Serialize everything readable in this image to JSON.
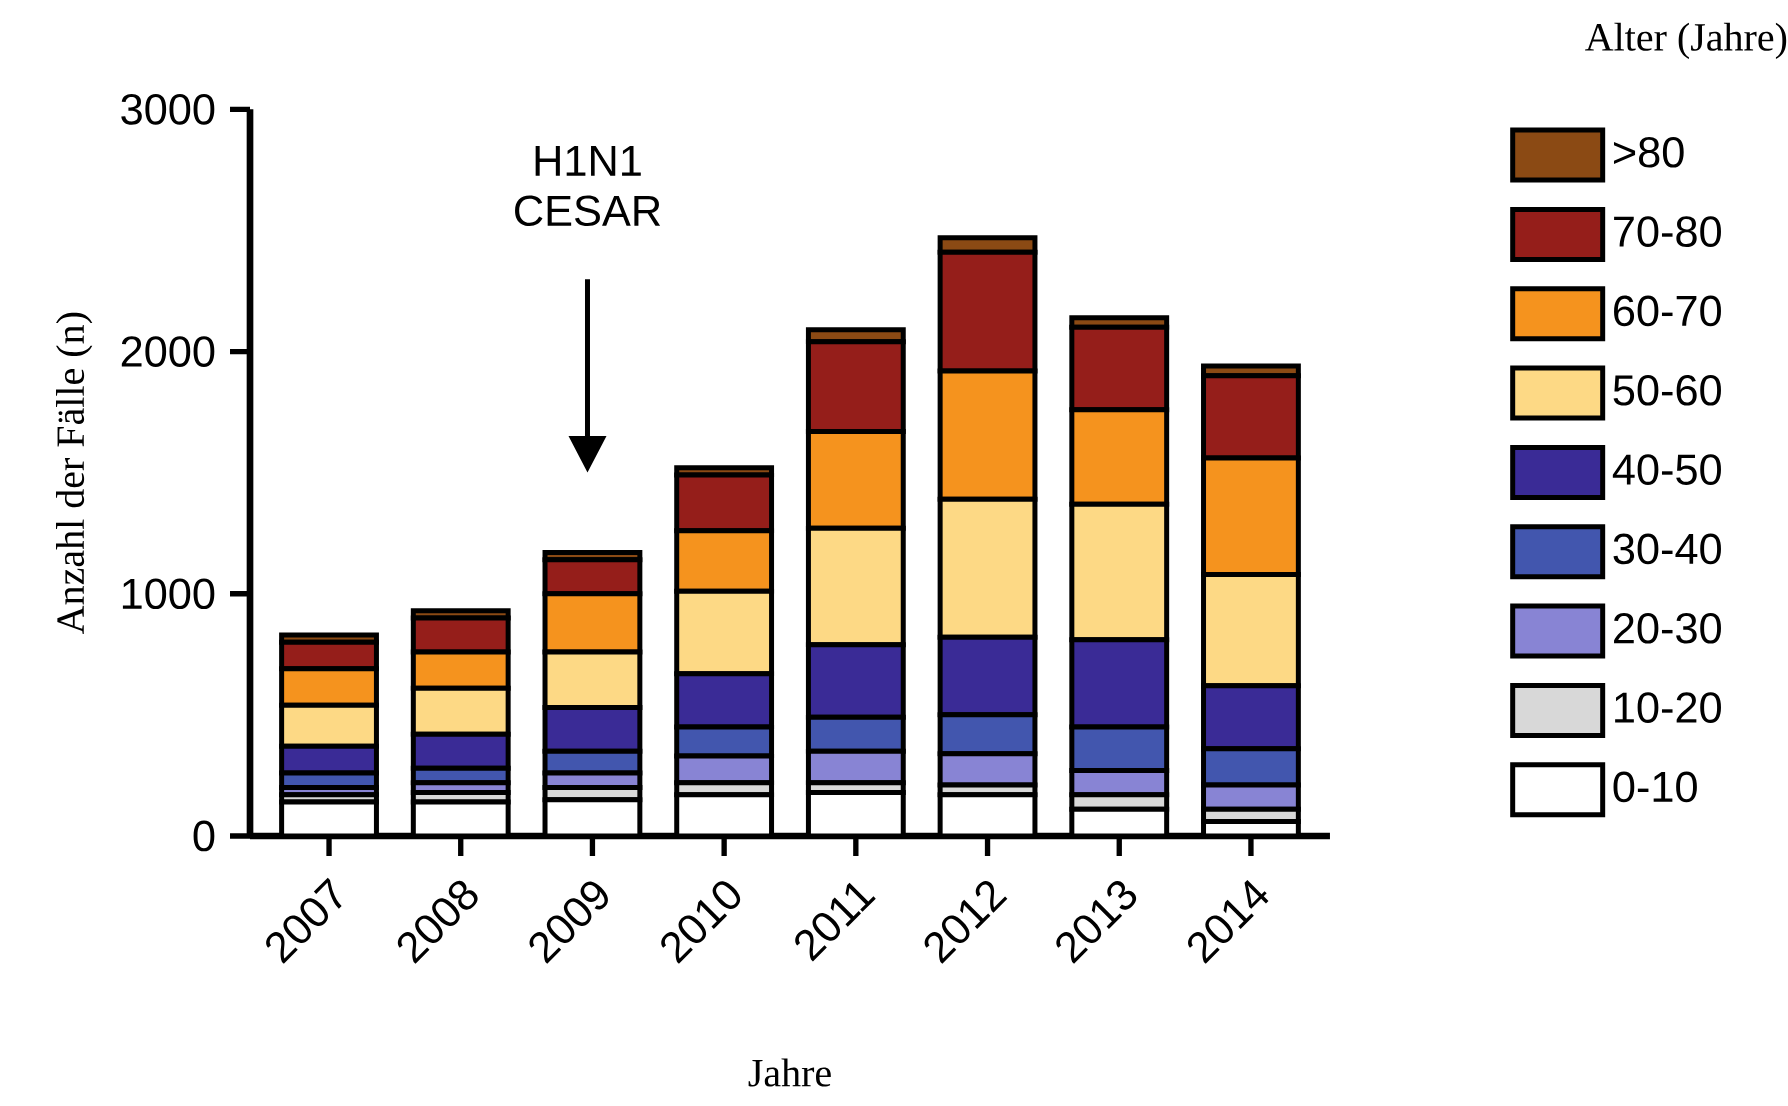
{
  "chart_data": {
    "type": "bar",
    "stacked": true,
    "xlabel": "Jahre",
    "ylabel": "Anzahl der Fälle (n)",
    "legend_title": "Alter (Jahre)",
    "legend": "right",
    "categories": [
      "2007",
      "2008",
      "2009",
      "2010",
      "2011",
      "2012",
      "2013",
      "2014"
    ],
    "ylim": [
      0,
      3000
    ],
    "yticks": [
      0,
      1000,
      2000,
      3000
    ],
    "series": [
      {
        "name": "0-10",
        "color": "#ffffff",
        "values": [
          140,
          140,
          150,
          170,
          180,
          170,
          110,
          60
        ]
      },
      {
        "name": "10-20",
        "color": "#d8d8d8",
        "values": [
          30,
          40,
          50,
          50,
          40,
          40,
          60,
          50
        ]
      },
      {
        "name": "20-30",
        "color": "#8884d4",
        "values": [
          30,
          40,
          60,
          110,
          130,
          130,
          100,
          100
        ]
      },
      {
        "name": "30-40",
        "color": "#4256ae",
        "values": [
          60,
          60,
          90,
          120,
          140,
          160,
          180,
          150
        ]
      },
      {
        "name": "40-50",
        "color": "#3a2b96",
        "values": [
          110,
          140,
          180,
          220,
          300,
          320,
          360,
          260
        ]
      },
      {
        "name": "50-60",
        "color": "#fdd985",
        "values": [
          170,
          190,
          230,
          340,
          480,
          570,
          560,
          460
        ]
      },
      {
        "name": "60-70",
        "color": "#f5931e",
        "values": [
          150,
          150,
          240,
          250,
          400,
          530,
          390,
          480
        ]
      },
      {
        "name": "70-80",
        "color": "#951e1a",
        "values": [
          110,
          140,
          140,
          230,
          370,
          490,
          340,
          340
        ]
      },
      {
        "name": ">80",
        "color": "#8b4a14",
        "values": [
          30,
          30,
          30,
          30,
          50,
          60,
          40,
          40
        ]
      }
    ],
    "annotations": [
      "H1N1 CESAR"
    ]
  }
}
